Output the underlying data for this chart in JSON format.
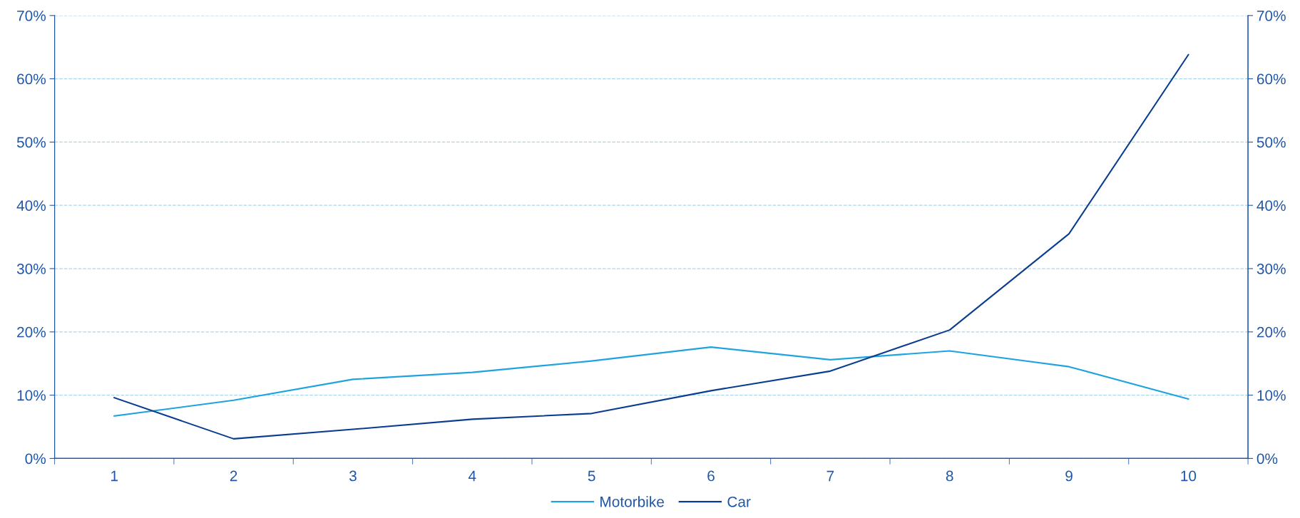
{
  "chart_data": {
    "type": "line",
    "categories": [
      "1",
      "2",
      "3",
      "4",
      "5",
      "6",
      "7",
      "8",
      "9",
      "10"
    ],
    "series": [
      {
        "name": "Motorbike",
        "color": "#1fa3e0",
        "values": [
          6.7,
          9.2,
          12.5,
          13.6,
          15.4,
          17.6,
          15.6,
          17.0,
          14.5,
          9.4
        ]
      },
      {
        "name": "Car",
        "color": "#0a3d8f",
        "values": [
          9.6,
          3.1,
          4.6,
          6.2,
          7.1,
          10.7,
          13.8,
          20.3,
          35.5,
          63.8
        ]
      }
    ],
    "ylim": [
      0,
      70
    ],
    "yticks": [
      {
        "value": 0,
        "label": "0%"
      },
      {
        "value": 10,
        "label": "10%"
      },
      {
        "value": 20,
        "label": "20%"
      },
      {
        "value": 30,
        "label": "30%"
      },
      {
        "value": 40,
        "label": "40%"
      },
      {
        "value": 50,
        "label": "50%"
      },
      {
        "value": 60,
        "label": "60%"
      },
      {
        "value": 70,
        "label": "70%"
      }
    ],
    "y2lim": [
      0,
      70
    ],
    "y2ticks": [
      {
        "value": 0,
        "label": "0%"
      },
      {
        "value": 10,
        "label": "10%"
      },
      {
        "value": 20,
        "label": "20%"
      },
      {
        "value": 30,
        "label": "30%"
      },
      {
        "value": 40,
        "label": "40%"
      },
      {
        "value": 50,
        "label": "50%"
      },
      {
        "value": 60,
        "label": "60%"
      },
      {
        "value": 70,
        "label": "70%"
      }
    ],
    "grid": "y",
    "legend": "bottom",
    "marker": "none",
    "line_style": "solid"
  }
}
